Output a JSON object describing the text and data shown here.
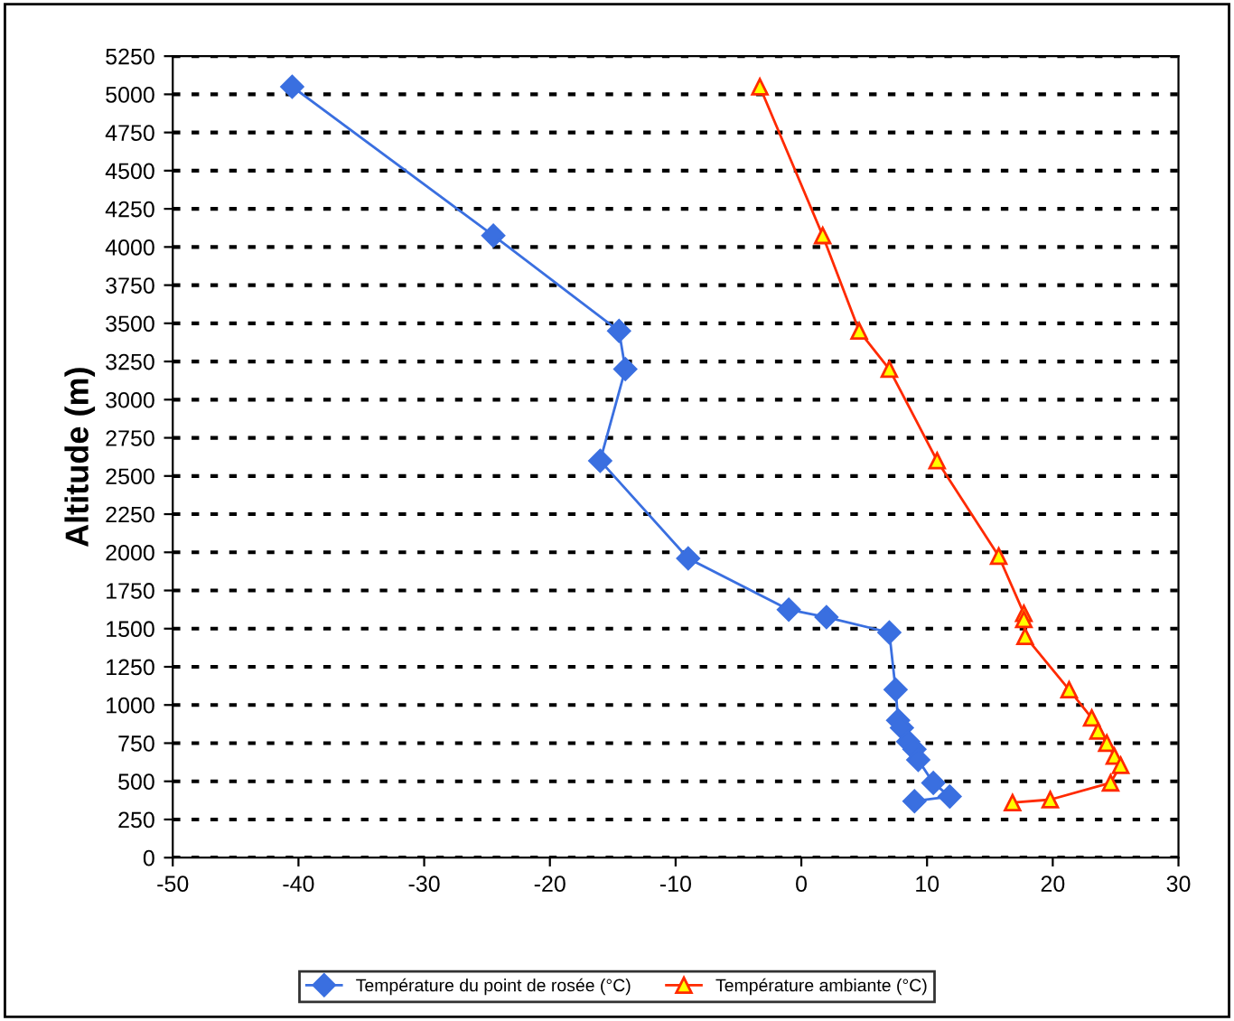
{
  "chart_data": {
    "type": "line",
    "ylabel": "Altitude (m)",
    "xlim": [
      -50,
      30
    ],
    "xticks": [
      -50,
      -40,
      -30,
      -20,
      -10,
      0,
      10,
      20,
      30
    ],
    "ylim": [
      0,
      5250
    ],
    "yticks": [
      0,
      250,
      500,
      750,
      1000,
      1250,
      1500,
      1750,
      2000,
      2250,
      2500,
      2750,
      3000,
      3250,
      3500,
      3750,
      4000,
      4250,
      4500,
      4750,
      5000,
      5250
    ],
    "grid": "y",
    "legend": "bottom",
    "line_style": "solid",
    "series": [
      {
        "name": "Température du point de rosée (°C)",
        "color": "#3a6fe0",
        "marker": "diamond",
        "x": [
          -40.5,
          -24.5,
          -14.5,
          -14,
          -16,
          -9,
          -1,
          2,
          7,
          7.5,
          7.7,
          8,
          8.5,
          9,
          9.3,
          10.5,
          11.8,
          9
        ],
        "values": [
          5050,
          4075,
          3450,
          3200,
          2600,
          1960,
          1625,
          1575,
          1475,
          1100,
          900,
          850,
          760,
          710,
          640,
          490,
          400,
          370
        ]
      },
      {
        "name": "Température ambiante (°C)",
        "color": "#ff2a00",
        "marker": "triangle",
        "x": [
          -3.3,
          1.7,
          4.6,
          7,
          10.8,
          15.7,
          17.7,
          17.7,
          17.8,
          21.3,
          23.1,
          23.6,
          24.3,
          24.9,
          25.4,
          24.6,
          19.8,
          16.8
        ],
        "values": [
          5050,
          4075,
          3450,
          3200,
          2600,
          1975,
          1600,
          1560,
          1450,
          1100,
          915,
          830,
          750,
          665,
          605,
          490,
          380,
          360
        ]
      }
    ]
  }
}
